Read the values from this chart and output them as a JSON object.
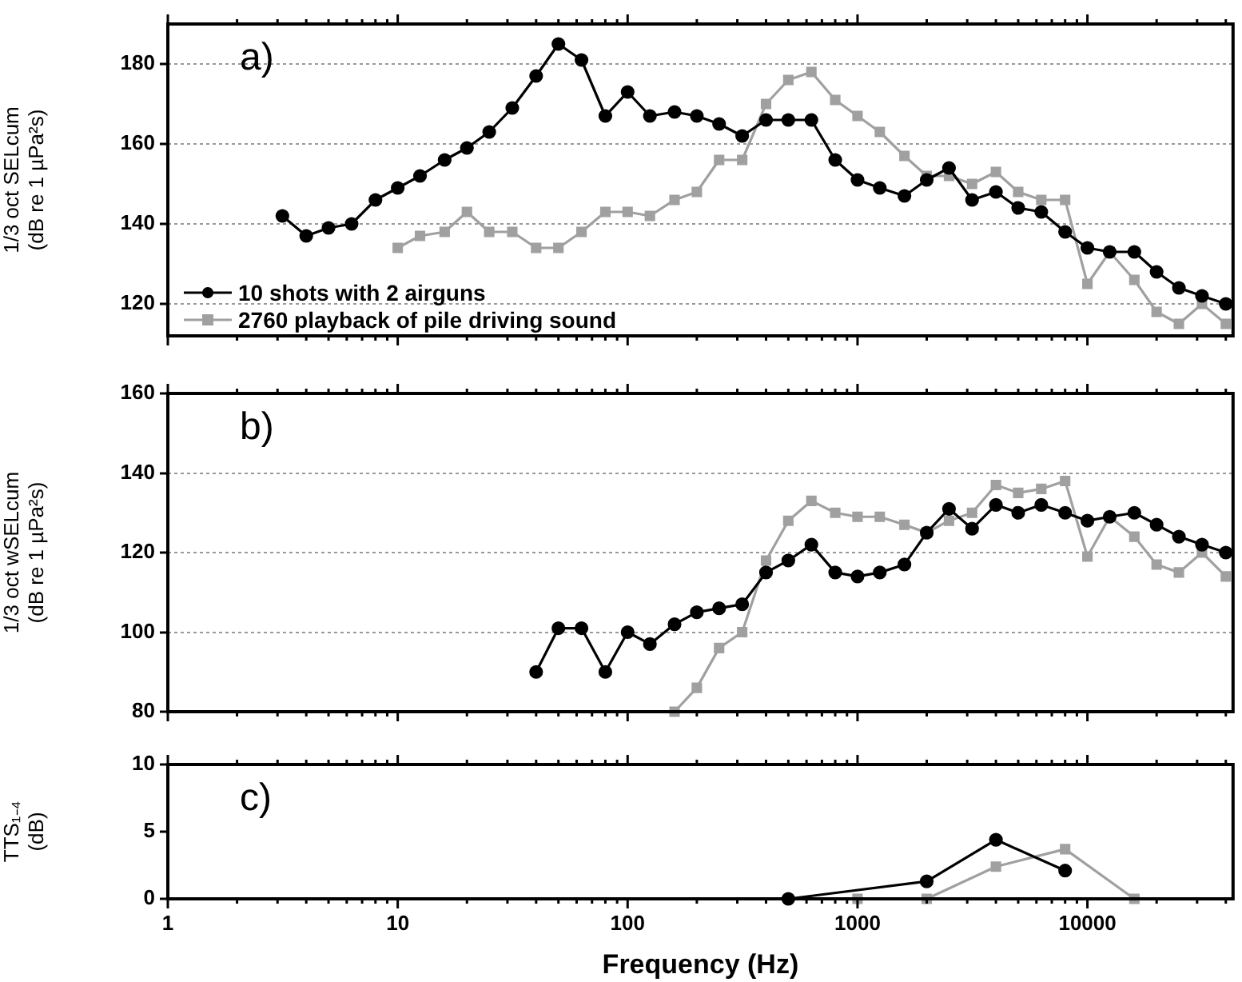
{
  "chart_data": [
    {
      "type": "line",
      "ylabel": "1/3 oct SELcum\n(dB re 1 µPa²s)",
      "annotations": [
        "a)"
      ],
      "xlim": [
        1,
        43000
      ],
      "ylim": [
        112,
        190
      ],
      "yticks": [
        120,
        140,
        160,
        180
      ],
      "log": "x",
      "grid": "y",
      "legend": "bottom left",
      "tick_labels": "y",
      "xticks": [
        1,
        {
          "value": 2,
          "label": null
        },
        {
          "value": 3,
          "label": null
        },
        {
          "value": 4,
          "label": null
        },
        {
          "value": 5,
          "label": null
        },
        {
          "value": 6,
          "label": null
        },
        {
          "value": 7,
          "label": null
        },
        {
          "value": 8,
          "label": null
        },
        {
          "value": 9,
          "label": null
        },
        10,
        {
          "value": 20,
          "label": null
        },
        {
          "value": 30,
          "label": null
        },
        {
          "value": 40,
          "label": null
        },
        {
          "value": 50,
          "label": null
        },
        {
          "value": 60,
          "label": null
        },
        {
          "value": 70,
          "label": null
        },
        {
          "value": 80,
          "label": null
        },
        {
          "value": 90,
          "label": null
        },
        100,
        {
          "value": 200,
          "label": null
        },
        {
          "value": 300,
          "label": null
        },
        {
          "value": 400,
          "label": null
        },
        {
          "value": 500,
          "label": null
        },
        {
          "value": 600,
          "label": null
        },
        {
          "value": 700,
          "label": null
        },
        {
          "value": 800,
          "label": null
        },
        {
          "value": 900,
          "label": null
        },
        1000,
        {
          "value": 2000,
          "label": null
        },
        {
          "value": 3000,
          "label": null
        },
        {
          "value": 4000,
          "label": null
        },
        {
          "value": 5000,
          "label": null
        },
        {
          "value": 6000,
          "label": null
        },
        {
          "value": 7000,
          "label": null
        },
        {
          "value": 8000,
          "label": null
        },
        {
          "value": 9000,
          "label": null
        },
        10000,
        {
          "value": 20000,
          "label": null
        },
        {
          "value": 30000,
          "label": null
        },
        {
          "value": 40000,
          "label": null
        }
      ],
      "series": [
        {
          "name": "10 shots with 2 airguns",
          "color": "#000000",
          "marker": "circle",
          "x": [
            3.15,
            4,
            5,
            6.3,
            8,
            10,
            12.5,
            16,
            20,
            25,
            31.5,
            40,
            50,
            63,
            80,
            100,
            125,
            160,
            200,
            250,
            315,
            400,
            500,
            630,
            800,
            1000,
            1250,
            1600,
            2000,
            2500,
            3150,
            4000,
            5000,
            6300,
            8000,
            10000,
            12500,
            16000,
            20000,
            25000,
            31500,
            40000
          ],
          "values": [
            142,
            137,
            139,
            140,
            146,
            149,
            152,
            156,
            159,
            163,
            169,
            177,
            185,
            181,
            167,
            173,
            167,
            168,
            167,
            165,
            162,
            166,
            166,
            166,
            156,
            151,
            149,
            147,
            151,
            154,
            146,
            148,
            144,
            143,
            138,
            134,
            133,
            133,
            128,
            124,
            122,
            120
          ]
        },
        {
          "name": "2760 playback of pile driving sound",
          "color": "#a0a0a0",
          "marker": "square",
          "x": [
            10,
            12.5,
            16,
            20,
            25,
            31.5,
            40,
            50,
            63,
            80,
            100,
            125,
            160,
            200,
            250,
            315,
            400,
            500,
            630,
            800,
            1000,
            1250,
            1600,
            2000,
            2500,
            3150,
            4000,
            5000,
            6300,
            8000,
            10000,
            12500,
            16000,
            20000,
            25000,
            31500,
            40000
          ],
          "values": [
            134,
            137,
            138,
            143,
            138,
            138,
            134,
            134,
            138,
            143,
            143,
            142,
            146,
            148,
            156,
            156,
            170,
            176,
            178,
            171,
            167,
            163,
            157,
            152,
            152,
            150,
            153,
            148,
            146,
            146,
            125,
            133,
            126,
            118,
            115,
            120,
            115
          ]
        }
      ]
    },
    {
      "type": "line",
      "ylabel": "1/3 oct wSELcum\n(dB re 1 µPa²s)",
      "annotations": [
        "b)"
      ],
      "xlim": [
        1,
        43000
      ],
      "ylim": [
        80,
        160
      ],
      "yticks": [
        80,
        100,
        120,
        140,
        160
      ],
      "log": "x",
      "grid": "y",
      "tick_labels": "y",
      "xticks": [
        1,
        {
          "value": 2,
          "label": null
        },
        {
          "value": 3,
          "label": null
        },
        {
          "value": 4,
          "label": null
        },
        {
          "value": 5,
          "label": null
        },
        {
          "value": 6,
          "label": null
        },
        {
          "value": 7,
          "label": null
        },
        {
          "value": 8,
          "label": null
        },
        {
          "value": 9,
          "label": null
        },
        10,
        {
          "value": 20,
          "label": null
        },
        {
          "value": 30,
          "label": null
        },
        {
          "value": 40,
          "label": null
        },
        {
          "value": 50,
          "label": null
        },
        {
          "value": 60,
          "label": null
        },
        {
          "value": 70,
          "label": null
        },
        {
          "value": 80,
          "label": null
        },
        {
          "value": 90,
          "label": null
        },
        100,
        {
          "value": 200,
          "label": null
        },
        {
          "value": 300,
          "label": null
        },
        {
          "value": 400,
          "label": null
        },
        {
          "value": 500,
          "label": null
        },
        {
          "value": 600,
          "label": null
        },
        {
          "value": 700,
          "label": null
        },
        {
          "value": 800,
          "label": null
        },
        {
          "value": 900,
          "label": null
        },
        1000,
        {
          "value": 2000,
          "label": null
        },
        {
          "value": 3000,
          "label": null
        },
        {
          "value": 4000,
          "label": null
        },
        {
          "value": 5000,
          "label": null
        },
        {
          "value": 6000,
          "label": null
        },
        {
          "value": 7000,
          "label": null
        },
        {
          "value": 8000,
          "label": null
        },
        {
          "value": 9000,
          "label": null
        },
        10000,
        {
          "value": 20000,
          "label": null
        },
        {
          "value": 30000,
          "label": null
        },
        {
          "value": 40000,
          "label": null
        }
      ],
      "series": [
        {
          "color": "#000000",
          "marker": "circle",
          "x": [
            40,
            50,
            63,
            80,
            100,
            125,
            160,
            200,
            250,
            315,
            400,
            500,
            630,
            800,
            1000,
            1250,
            1600,
            2000,
            2500,
            3150,
            4000,
            5000,
            6300,
            8000,
            10000,
            12500,
            16000,
            20000,
            25000,
            31500,
            40000
          ],
          "values": [
            90,
            101,
            101,
            90,
            100,
            97,
            102,
            105,
            106,
            107,
            115,
            118,
            122,
            115,
            114,
            115,
            117,
            125,
            131,
            126,
            132,
            130,
            132,
            130,
            128,
            129,
            130,
            127,
            124,
            122,
            120
          ]
        },
        {
          "color": "#a0a0a0",
          "marker": "square",
          "x": [
            160,
            200,
            250,
            315,
            400,
            500,
            630,
            800,
            1000,
            1250,
            1600,
            2000,
            2500,
            3150,
            4000,
            5000,
            6300,
            8000,
            10000,
            12500,
            16000,
            20000,
            25000,
            31500,
            40000
          ],
          "values": [
            80,
            86,
            96,
            100,
            118,
            128,
            133,
            130,
            129,
            129,
            127,
            125,
            128,
            130,
            137,
            135,
            136,
            138,
            119,
            129,
            124,
            117,
            115,
            120,
            114
          ]
        }
      ]
    },
    {
      "type": "line",
      "xlabel": "Frequency (Hz)",
      "ylabel": "TTS₁₋₄\n(dB)",
      "annotations": [
        "c)"
      ],
      "xlim": [
        1,
        43000
      ],
      "ylim": [
        0,
        10
      ],
      "yticks": [
        0,
        5,
        10
      ],
      "log": "x",
      "grid": false,
      "xticks": [
        1,
        {
          "value": 2,
          "label": null
        },
        {
          "value": 3,
          "label": null
        },
        {
          "value": 4,
          "label": null
        },
        {
          "value": 5,
          "label": null
        },
        {
          "value": 6,
          "label": null
        },
        {
          "value": 7,
          "label": null
        },
        {
          "value": 8,
          "label": null
        },
        {
          "value": 9,
          "label": null
        },
        10,
        {
          "value": 20,
          "label": null
        },
        {
          "value": 30,
          "label": null
        },
        {
          "value": 40,
          "label": null
        },
        {
          "value": 50,
          "label": null
        },
        {
          "value": 60,
          "label": null
        },
        {
          "value": 70,
          "label": null
        },
        {
          "value": 80,
          "label": null
        },
        {
          "value": 90,
          "label": null
        },
        100,
        {
          "value": 200,
          "label": null
        },
        {
          "value": 300,
          "label": null
        },
        {
          "value": 400,
          "label": null
        },
        {
          "value": 500,
          "label": null
        },
        {
          "value": 600,
          "label": null
        },
        {
          "value": 700,
          "label": null
        },
        {
          "value": 800,
          "label": null
        },
        {
          "value": 900,
          "label": null
        },
        1000,
        {
          "value": 2000,
          "label": null
        },
        {
          "value": 3000,
          "label": null
        },
        {
          "value": 4000,
          "label": null
        },
        {
          "value": 5000,
          "label": null
        },
        {
          "value": 6000,
          "label": null
        },
        {
          "value": 7000,
          "label": null
        },
        {
          "value": 8000,
          "label": null
        },
        {
          "value": 9000,
          "label": null
        },
        10000,
        {
          "value": 20000,
          "label": null
        },
        {
          "value": 30000,
          "label": null
        },
        {
          "value": 40000,
          "label": null
        }
      ],
      "series": [
        {
          "color": "#000000",
          "marker": "circle",
          "x": [
            500,
            2000,
            4000,
            8000
          ],
          "values": [
            0,
            1.3,
            4.4,
            2.1
          ]
        },
        {
          "color": "#a0a0a0",
          "marker": "square",
          "x": [
            1000,
            2000,
            4000,
            8000,
            16000
          ],
          "values": [
            0,
            0,
            2.4,
            3.7,
            0
          ]
        }
      ]
    }
  ]
}
